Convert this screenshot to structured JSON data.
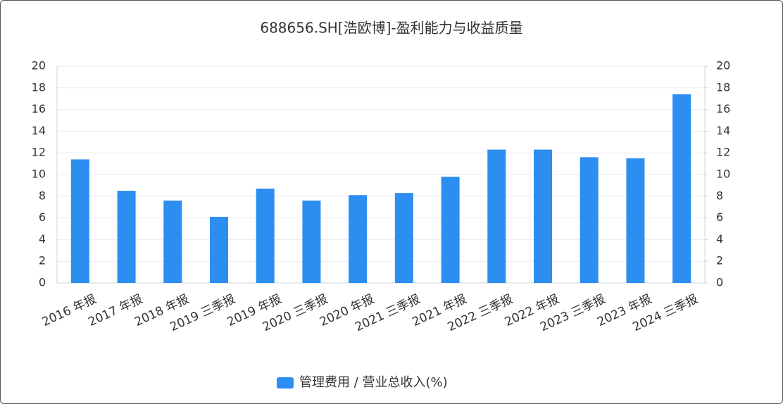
{
  "chart_data": {
    "type": "bar",
    "title": "688656.SH[浩欧博]-盈利能力与收益质量",
    "categories": [
      "2016 年报",
      "2017 年报",
      "2018 年报",
      "2019 三季报",
      "2019 年报",
      "2020 三季报",
      "2020 年报",
      "2021 三季报",
      "2021 年报",
      "2022 三季报",
      "2022 年报",
      "2023 三季报",
      "2023 年报",
      "2024 三季报"
    ],
    "series": [
      {
        "name": "管理费用 / 营业总收入(%)",
        "color": "#2b8ef0",
        "values": [
          11.4,
          8.5,
          7.6,
          6.1,
          8.7,
          7.6,
          8.1,
          8.3,
          9.8,
          12.3,
          12.3,
          11.6,
          11.5,
          17.4
        ]
      }
    ],
    "ylim": [
      0,
      20
    ],
    "yticks": [
      0,
      2,
      4,
      6,
      8,
      10,
      12,
      14,
      16,
      18,
      20
    ],
    "y2lim": [
      0,
      20
    ],
    "y2ticks": [
      0,
      2,
      4,
      6,
      8,
      10,
      12,
      14,
      16,
      18,
      20
    ],
    "grid": true,
    "legend": "bottom"
  }
}
